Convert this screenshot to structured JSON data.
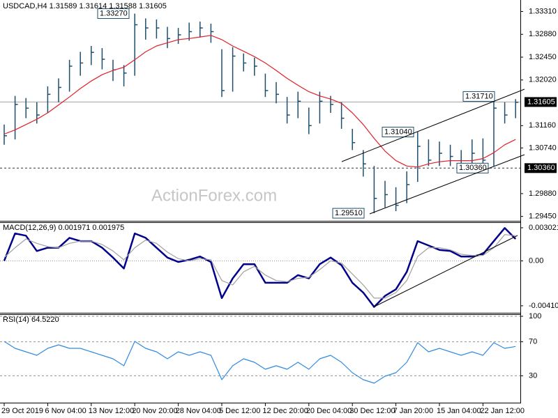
{
  "chart_data": [
    {
      "type": "ohlc",
      "title": "USDCAD,H4  1.31589 1.31614 1.31588 1.31605",
      "watermark": "ActionForex.com",
      "categories": [
        "29 Oct 2019",
        null,
        null,
        null,
        "6 Nov 04:00",
        null,
        null,
        null,
        "13 Nov 12:00",
        null,
        null,
        null,
        "20 Nov 20:00",
        null,
        null,
        null,
        "28 Nov 04:00",
        null,
        null,
        null,
        "5 Dec 12:00",
        null,
        null,
        null,
        "12 Dec 20:00",
        null,
        null,
        null,
        "20 Dec 04:00",
        null,
        null,
        null,
        "30 Dec 12:00",
        null,
        null,
        null,
        "7 Jan 20:00",
        null,
        null,
        null,
        "15 Jan 04:00",
        null,
        null,
        null,
        "22 Jan 12:00",
        null,
        null,
        null
      ],
      "high": [
        1.3118,
        1.3172,
        1.3168,
        1.316,
        1.319,
        1.3205,
        1.324,
        1.3255,
        1.3266,
        1.3262,
        1.324,
        1.323,
        1.3327,
        1.3318,
        1.3316,
        1.3302,
        1.33,
        1.331,
        1.3312,
        1.3308,
        1.326,
        1.3264,
        1.3252,
        1.3244,
        1.3214,
        1.3198,
        1.317,
        1.318,
        1.315,
        1.318,
        1.3172,
        1.316,
        1.311,
        1.307,
        1.304,
        1.3012,
        1.3,
        1.303,
        1.3104,
        1.309,
        1.3086,
        1.308,
        1.307,
        1.309,
        1.3092,
        1.3171,
        1.316,
        1.3166
      ],
      "low": [
        1.308,
        1.309,
        1.313,
        1.312,
        1.314,
        1.316,
        1.318,
        1.321,
        1.323,
        1.3222,
        1.32,
        1.319,
        1.321,
        1.3278,
        1.328,
        1.3262,
        1.327,
        1.3276,
        1.3282,
        1.3272,
        1.317,
        1.318,
        1.3218,
        1.321,
        1.317,
        1.3158,
        1.312,
        1.313,
        1.31,
        1.312,
        1.314,
        1.311,
        1.307,
        1.302,
        1.2951,
        1.2962,
        1.2955,
        1.297,
        1.301,
        1.304,
        1.304,
        1.304,
        1.3036,
        1.304,
        1.304,
        1.304,
        1.312,
        1.313
      ],
      "close": [
        1.3097,
        1.3156,
        1.3149,
        1.3136,
        1.3175,
        1.3188,
        1.3228,
        1.3234,
        1.3254,
        1.3241,
        1.3221,
        1.3215,
        1.3306,
        1.33,
        1.33,
        1.328,
        1.3287,
        1.3293,
        1.33,
        1.3293,
        1.3182,
        1.3247,
        1.3234,
        1.3228,
        1.3182,
        1.3175,
        1.3136,
        1.3162,
        1.3116,
        1.3162,
        1.3156,
        1.313,
        1.3084,
        1.3044,
        1.2979,
        1.2986,
        1.2966,
        1.3005,
        1.3077,
        1.3051,
        1.3064,
        1.3058,
        1.3044,
        1.3064,
        1.3051,
        1.3149,
        1.3136,
        1.316
      ],
      "color": "#1d4e6e",
      "series": [
        {
          "color": "#e0202a",
          "values": [
            1.31,
            1.3108,
            1.3118,
            1.3128,
            1.314,
            1.3155,
            1.317,
            1.3186,
            1.32,
            1.3212,
            1.322,
            1.3226,
            1.324,
            1.3255,
            1.3266,
            1.3272,
            1.3278,
            1.328,
            1.3283,
            1.3286,
            1.3278,
            1.3266,
            1.3256,
            1.3246,
            1.3234,
            1.322,
            1.3205,
            1.3192,
            1.318,
            1.3172,
            1.3166,
            1.3158,
            1.314,
            1.3118,
            1.3092,
            1.3068,
            1.305,
            1.304,
            1.3038,
            1.3044,
            1.3048,
            1.305,
            1.305,
            1.305,
            1.3054,
            1.3065,
            1.308,
            1.309
          ]
        }
      ],
      "ylim": [
        1.2938,
        1.335
      ],
      "yticks": [
        {
          "value": 1.3331,
          "label": "1.33310"
        },
        {
          "value": 1.3288,
          "label": "1.32880"
        },
        {
          "value": 1.3245,
          "label": "1.32450"
        },
        {
          "value": 1.3202,
          "label": "1.32020"
        },
        {
          "value": 1.3116,
          "label": "1.31160"
        },
        {
          "value": 1.3074,
          "label": "1.30740"
        },
        {
          "value": 1.2988,
          "label": "1.29880"
        },
        {
          "value": 1.2945,
          "label": "1.29450"
        }
      ],
      "hlines": [
        {
          "value": 1.31605,
          "label": "1.31605",
          "style": "solid"
        },
        {
          "value": 1.3036,
          "label": "1.30360",
          "style": "dashed"
        }
      ],
      "annotations": [
        {
          "value": 1.3327,
          "label": "1.33270"
        },
        {
          "value": 1.3104,
          "label": "1.31040"
        },
        {
          "value": 1.3171,
          "label": "1.31710"
        },
        {
          "value": 1.3036,
          "label": "1.30360"
        },
        {
          "value": 1.2951,
          "label": "1.29510"
        }
      ]
    },
    {
      "type": "line",
      "title": "MACD(12,26,9) 0.001971 0.001975",
      "series": [
        {
          "color": "#00008b",
          "values": [
            0.0,
            0.0025,
            0.0023,
            0.0009,
            0.0012,
            0.0012,
            0.0021,
            0.0018,
            0.0018,
            0.0012,
            0.0003,
            -0.0007,
            0.0025,
            0.0021,
            0.0012,
            0.0003,
            -0.0001,
            0.0001,
            0.0004,
            -0.0001,
            -0.0034,
            -0.0016,
            -0.0003,
            -0.0003,
            -0.002,
            -0.002,
            -0.002,
            -0.0013,
            -0.0016,
            -0.0003,
            0.0003,
            -0.0004,
            -0.002,
            -0.0029,
            -0.0042,
            -0.0032,
            -0.0026,
            -0.001,
            0.0018,
            0.0014,
            0.001,
            0.0009,
            0.0004,
            0.0004,
            0.0006,
            0.0018,
            0.003,
            0.002
          ]
        },
        {
          "color": "#a0a0a0",
          "values": [
            0.0003,
            0.0012,
            0.002,
            0.0016,
            0.0013,
            0.0012,
            0.0016,
            0.0018,
            0.0018,
            0.0015,
            0.0009,
            0.0001,
            0.0012,
            0.0019,
            0.0016,
            0.0008,
            0.0002,
            0.0,
            0.0002,
            0.0001,
            -0.0018,
            -0.0022,
            -0.001,
            -0.0005,
            -0.0013,
            -0.0018,
            -0.0019,
            -0.0016,
            -0.0015,
            -0.0008,
            0.0,
            -0.0002,
            -0.0012,
            -0.0022,
            -0.0034,
            -0.0034,
            -0.0029,
            -0.0018,
            0.0004,
            0.0012,
            0.0012,
            0.001,
            0.0006,
            0.0005,
            0.0005,
            0.0012,
            0.0024,
            0.0023
          ]
        }
      ],
      "ylim": [
        -0.00468,
        0.0034
      ],
      "yticks": [
        0.003021,
        {
          "value": 0,
          "label": "0.00"
        },
        -0.004103
      ],
      "zero_line": true
    },
    {
      "type": "line",
      "title": "RSI(14) 64.5220",
      "series": [
        {
          "color": "#2f8ae0",
          "values": [
            70.5,
            62.3,
            58.2,
            54.1,
            62.3,
            66.4,
            62.3,
            62.3,
            58.2,
            54.1,
            50.0,
            41.8,
            70.5,
            62.3,
            58.2,
            50.0,
            58.2,
            54.1,
            58.2,
            54.1,
            25.4,
            41.8,
            50.0,
            45.9,
            37.7,
            41.8,
            37.7,
            45.9,
            37.7,
            50.0,
            54.1,
            45.9,
            33.6,
            25.4,
            21.3,
            29.5,
            33.6,
            45.9,
            68.9,
            58.2,
            62.3,
            58.2,
            54.1,
            58.2,
            54.1,
            68.9,
            62.3,
            64.5
          ]
        }
      ],
      "ylim": [
        0,
        100
      ],
      "yticks": [
        100,
        70,
        30
      ],
      "grid": "dashed"
    }
  ]
}
